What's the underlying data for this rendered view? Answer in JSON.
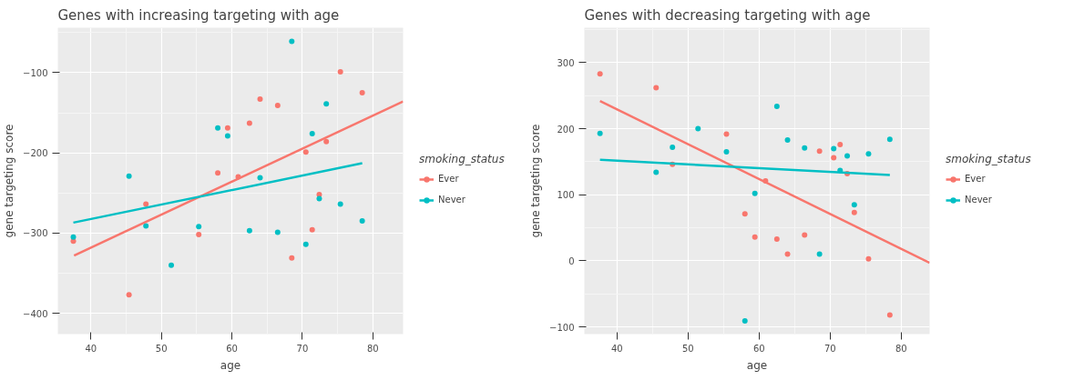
{
  "chart_data": [
    {
      "type": "scatter",
      "title": "Genes with increasing targeting with age",
      "xlabel": "age",
      "ylabel": "gene targeting score",
      "legend_title": "smoking_status",
      "legend": "right",
      "grid": true,
      "xlim": [
        35.3,
        84.3
      ],
      "ylim": [
        -426,
        -44
      ],
      "xticks": [
        40,
        50,
        60,
        70,
        80
      ],
      "yticks": [
        -400,
        -300,
        -200,
        -100
      ],
      "series": [
        {
          "name": "Ever",
          "color": "#f8766d",
          "marker": "circle",
          "x": [
            37.5,
            45.4,
            47.8,
            55.3,
            58.0,
            59.4,
            60.9,
            62.5,
            64.0,
            66.5,
            68.5,
            70.5,
            71.4,
            72.4,
            73.4,
            75.4,
            78.5
          ],
          "values": [
            -310,
            -377,
            -264,
            -302,
            -225,
            -169,
            -230,
            -163,
            -133,
            -141,
            -331,
            -199,
            -296,
            -252,
            -186,
            -99,
            -125
          ]
        },
        {
          "name": "Never",
          "color": "#00bfc4",
          "marker": "circle",
          "x": [
            37.5,
            45.4,
            47.8,
            51.4,
            55.3,
            58.0,
            59.4,
            62.5,
            64.0,
            66.5,
            68.5,
            70.5,
            71.4,
            72.4,
            73.4,
            75.4,
            78.5
          ],
          "values": [
            -305,
            -229,
            -291,
            -340,
            -292,
            -169,
            -179,
            -297,
            -231,
            -299,
            -61,
            -314,
            -176,
            -257,
            -139,
            -264,
            -285
          ]
        },
        {
          "name": "Ever",
          "type": "line",
          "color": "#f8766d",
          "x": [
            37.6,
            84.3
          ],
          "values": [
            -328,
            -136
          ]
        },
        {
          "name": "Never",
          "type": "line",
          "color": "#00bfc4",
          "x": [
            37.5,
            78.5
          ],
          "values": [
            -287,
            -213
          ]
        }
      ]
    },
    {
      "type": "scatter",
      "title": "Genes with decreasing targeting with age",
      "xlabel": "age",
      "ylabel": "gene targeting score",
      "legend_title": "smoking_status",
      "legend": "right",
      "grid": true,
      "xlim": [
        35.4,
        84
      ],
      "ylim": [
        -111,
        353
      ],
      "xticks": [
        40,
        50,
        60,
        70,
        80
      ],
      "yticks": [
        -100,
        0,
        100,
        200,
        300
      ],
      "series": [
        {
          "name": "Ever",
          "color": "#f8766d",
          "marker": "circle",
          "x": [
            37.6,
            45.5,
            47.8,
            55.4,
            58.0,
            59.4,
            60.9,
            62.5,
            64.0,
            66.4,
            68.5,
            70.5,
            71.4,
            72.4,
            73.4,
            75.4,
            78.4
          ],
          "values": [
            283,
            262,
            146,
            192,
            71,
            36,
            121,
            33,
            10,
            39,
            166,
            156,
            176,
            132,
            73,
            3,
            -82
          ]
        },
        {
          "name": "Never",
          "color": "#00bfc4",
          "marker": "circle",
          "x": [
            37.6,
            45.5,
            47.8,
            51.4,
            55.4,
            58.0,
            59.4,
            62.5,
            64.0,
            66.4,
            68.5,
            70.5,
            71.4,
            72.4,
            73.4,
            75.4,
            78.4
          ],
          "values": [
            193,
            134,
            172,
            200,
            165,
            -91,
            102,
            234,
            183,
            171,
            10,
            170,
            137,
            159,
            85,
            162,
            184
          ]
        },
        {
          "name": "Ever",
          "type": "line",
          "color": "#f8766d",
          "x": [
            37.6,
            84
          ],
          "values": [
            242,
            -3
          ]
        },
        {
          "name": "Never",
          "type": "line",
          "color": "#00bfc4",
          "x": [
            37.6,
            78.4
          ],
          "values": [
            153,
            130
          ]
        }
      ]
    }
  ]
}
